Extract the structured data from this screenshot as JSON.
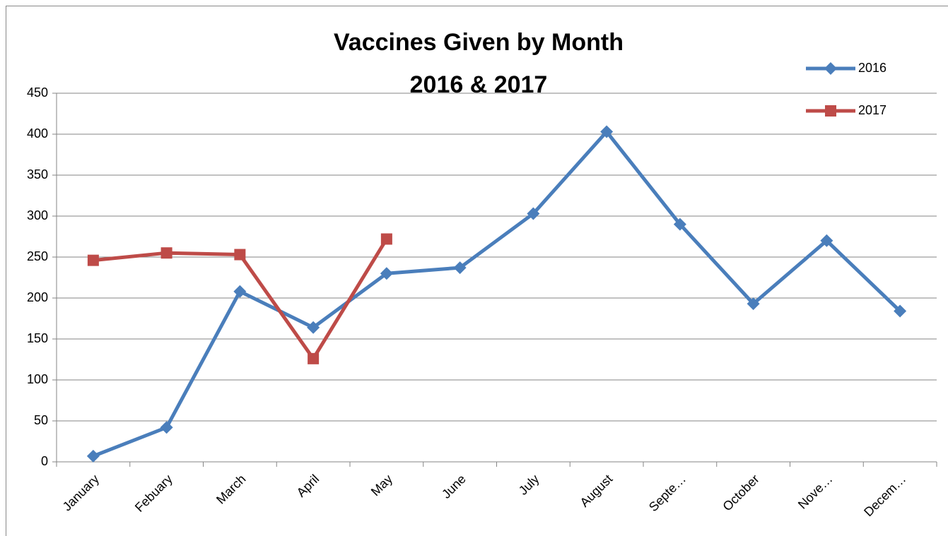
{
  "chart_data": {
    "type": "line",
    "title": "Vaccines Given by Month",
    "subtitle": "2016 & 2017",
    "categories": [
      "January",
      "Febuary",
      "March",
      "April",
      "May",
      "June",
      "July",
      "August",
      "Septe…",
      "October",
      "Nove…",
      "Decem…"
    ],
    "series": [
      {
        "name": "2016",
        "color": "#4a7ebb",
        "marker": "diamond",
        "values": [
          7,
          42,
          208,
          164,
          230,
          237,
          303,
          403,
          290,
          193,
          270,
          184
        ]
      },
      {
        "name": "2017",
        "color": "#be4b48",
        "marker": "square",
        "values": [
          246,
          255,
          253,
          126,
          272,
          null,
          null,
          null,
          null,
          null,
          null,
          null
        ]
      }
    ],
    "ylim": [
      0,
      450
    ],
    "yticks": [
      0,
      50,
      100,
      150,
      200,
      250,
      300,
      350,
      400,
      450
    ],
    "grid": true,
    "legend": "top-right"
  }
}
